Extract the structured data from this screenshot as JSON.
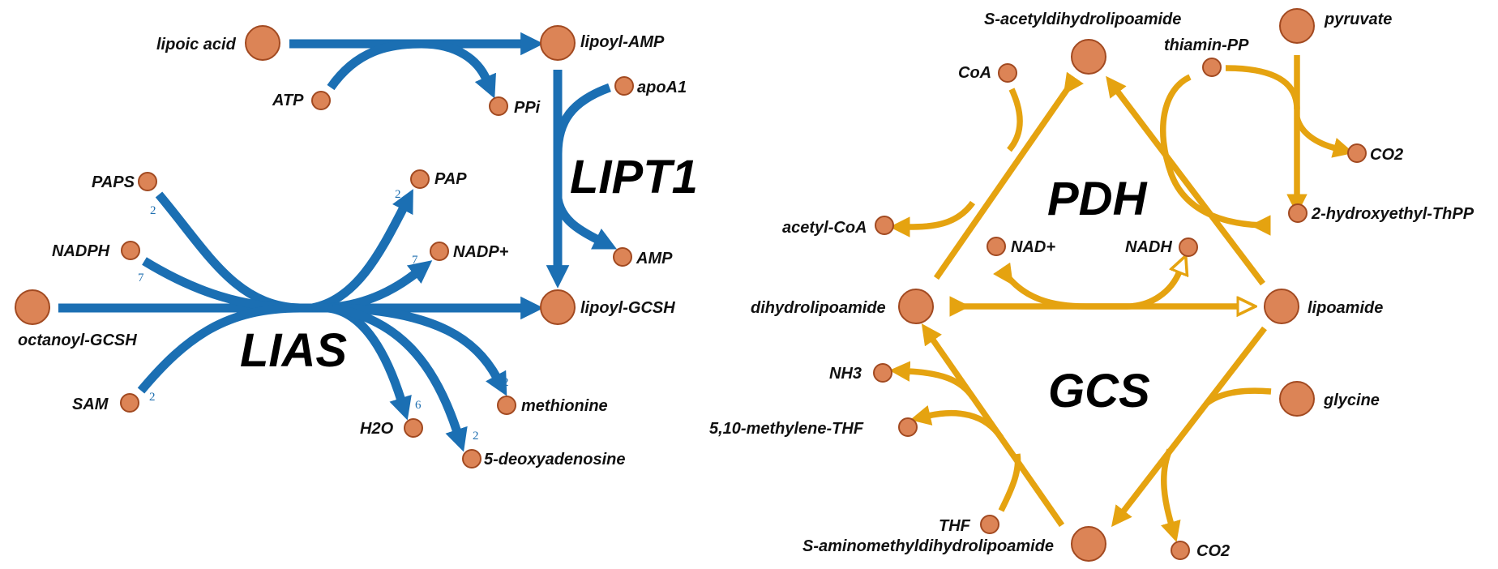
{
  "colors": {
    "blue_flux": "#1b6fb3",
    "gold_flux": "#e5a310",
    "node_fill": "#dc8456",
    "node_stroke": "#a24a21",
    "coef_text": "#1f6fb0"
  },
  "enzymes": {
    "lipt1": "LIPT1",
    "lias": "LIAS",
    "pdh": "PDH",
    "gcs": "GCS"
  },
  "metabolites": {
    "lipoic_acid": "lipoic acid",
    "lipoyl_amp": "lipoyl-AMP",
    "atp": "ATP",
    "ppi": "PPi",
    "apoa1": "apoA1",
    "amp": "AMP",
    "paps": "PAPS",
    "pap": "PAP",
    "nadph": "NADPH",
    "nadp_plus": "NADP+",
    "octanoyl_gcsh": "octanoyl-GCSH",
    "lipoyl_gcsh": "lipoyl-GCSH",
    "sam": "SAM",
    "methionine": "methionine",
    "h2o": "H2O",
    "deoxyadenosine": "5-deoxyadenosine",
    "s_acetyldihydrolipoamide": "S-acetyldihydrolipoamide",
    "pyruvate": "pyruvate",
    "coa": "CoA",
    "thiamin_pp": "thiamin-PP",
    "co2_top": "CO2",
    "hydroxyethyl_thpp": "2-hydroxyethyl-ThPP",
    "acetyl_coa": "acetyl-CoA",
    "nad_plus": "NAD+",
    "nadh": "NADH",
    "dihydrolipoamide": "dihydrolipoamide",
    "lipoamide": "lipoamide",
    "nh3": "NH3",
    "methylene_thf": "5,10-methylene-THF",
    "glycine": "glycine",
    "thf": "THF",
    "s_aminomethyldihydrolipoamide": "S-aminomethyldihydrolipoamide",
    "co2_bottom": "CO2"
  },
  "coefficients": {
    "paps": "2",
    "nadph": "7",
    "sam": "2",
    "pap": "2",
    "nadp_plus": "7",
    "methionine": "2",
    "h2o": "6",
    "deoxyadenosine": "2"
  }
}
